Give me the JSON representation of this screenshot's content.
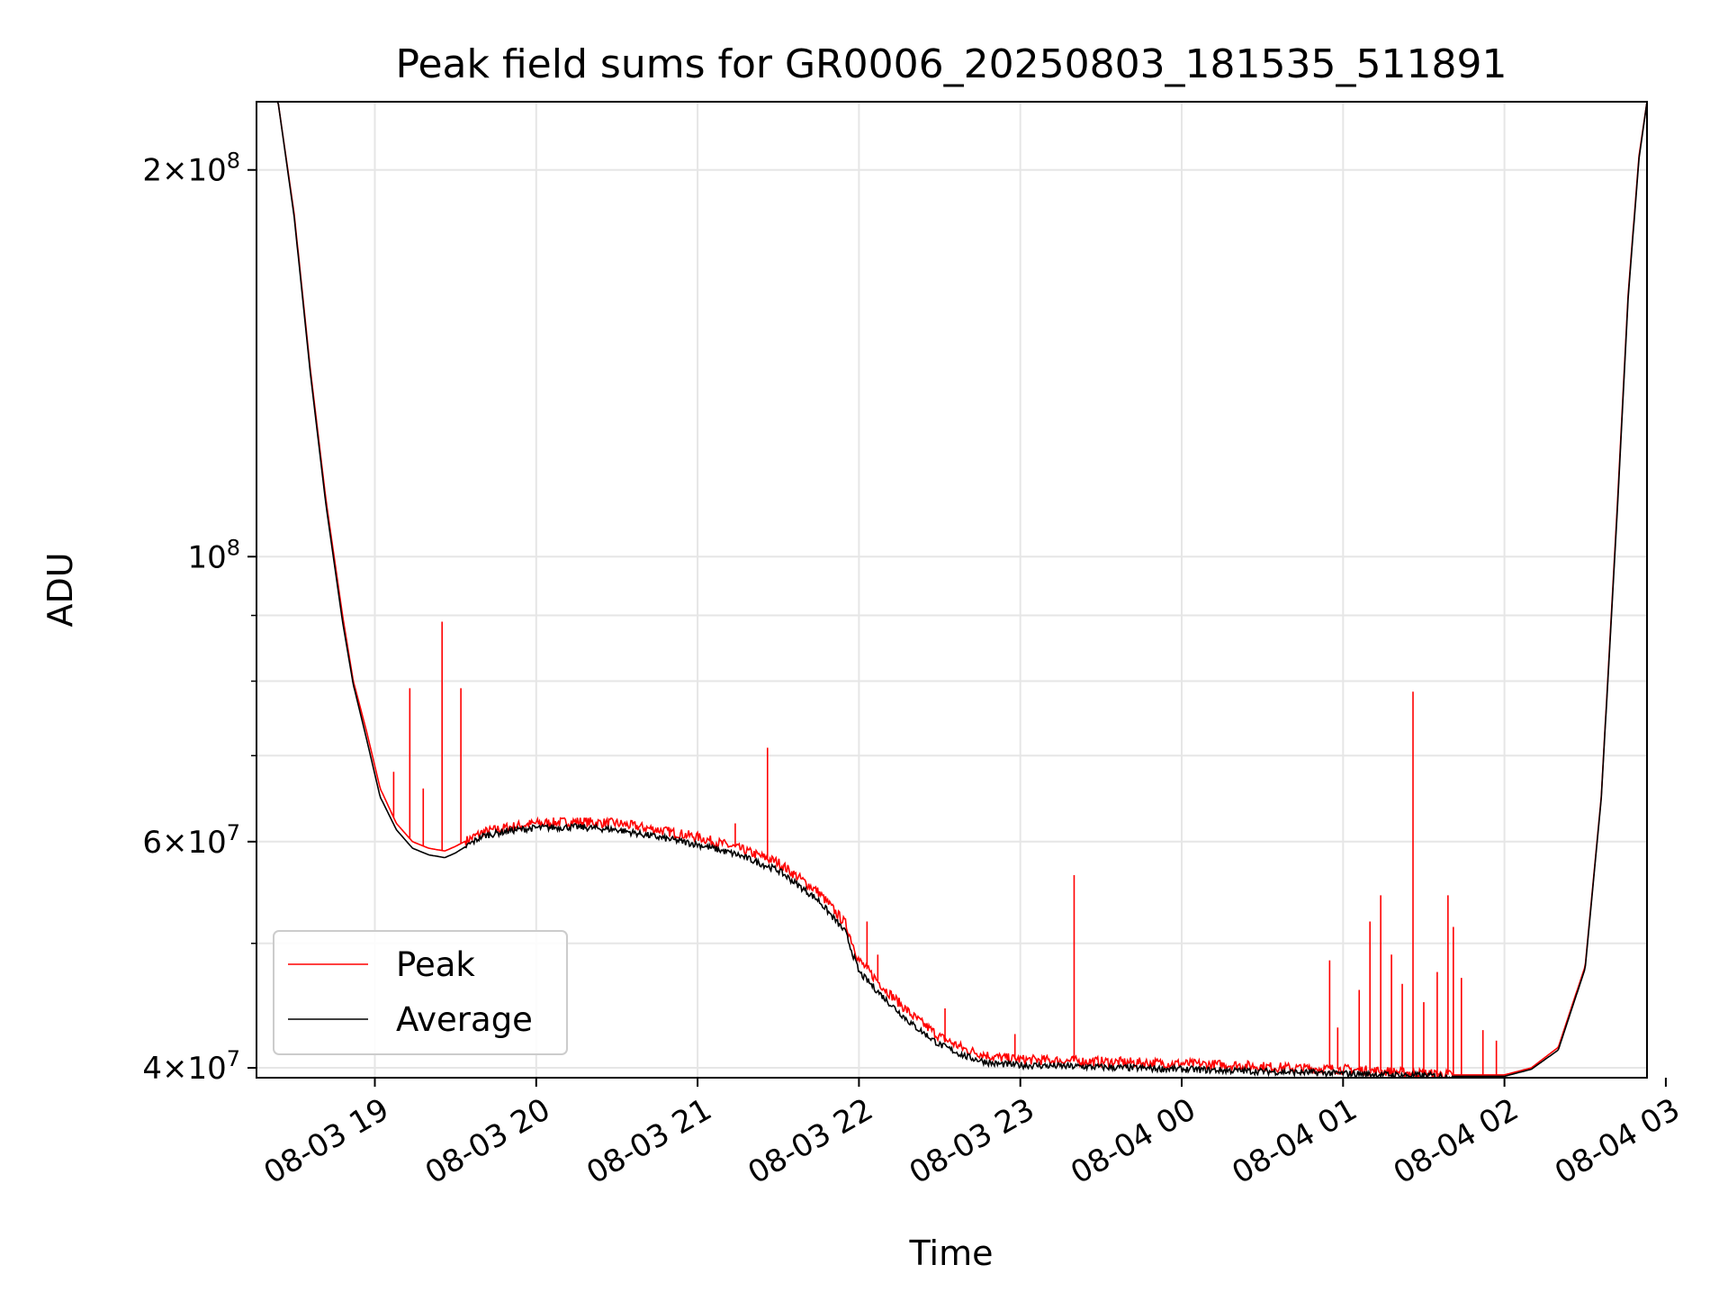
{
  "chart_data": {
    "type": "line",
    "title": "Peak field sums for GR0006_20250803_181535_511891",
    "xlabel": "Time",
    "ylabel": "ADU",
    "x_scale": "time",
    "y_scale": "log",
    "xlim": [
      "2025-08-03 18:16",
      "2025-08-04 02:53"
    ],
    "ylim": [
      39300000,
      226000000
    ],
    "grid": true,
    "legend_placement": "lower-left",
    "x_ticks": [
      "08-03 19",
      "08-03 20",
      "08-03 21",
      "08-03 22",
      "08-03 23",
      "08-04 00",
      "08-04 01",
      "08-04 02",
      "08-04 03"
    ],
    "x_tick_times": [
      "2025-08-03 19:00",
      "2025-08-03 20:00",
      "2025-08-03 21:00",
      "2025-08-03 22:00",
      "2025-08-03 23:00",
      "2025-08-04 00:00",
      "2025-08-04 01:00",
      "2025-08-04 02:00",
      "2025-08-04 03:00"
    ],
    "y_ticks": [
      {
        "value": 40000000,
        "base": "4",
        "exp": "7"
      },
      {
        "value": 60000000,
        "base": "6",
        "exp": "7"
      },
      {
        "value": 100000000,
        "base": "",
        "exp": "8"
      },
      {
        "value": 200000000,
        "base": "2",
        "exp": "8"
      }
    ],
    "y_minor_ticks": [
      50000000,
      70000000,
      80000000,
      90000000
    ],
    "series": [
      {
        "name": "Peak",
        "color": "#ff0000",
        "x": [
          "2025-08-03 18:16",
          "2025-08-03 18:24",
          "2025-08-03 18:30",
          "2025-08-03 18:36",
          "2025-08-03 18:42",
          "2025-08-03 18:48",
          "2025-08-03 18:52",
          "2025-08-03 18:57",
          "2025-08-03 19:02",
          "2025-08-03 19:08",
          "2025-08-03 19:14",
          "2025-08-03 19:20",
          "2025-08-03 19:26",
          "2025-08-03 19:30",
          "2025-08-03 19:40",
          "2025-08-03 19:50",
          "2025-08-03 20:00",
          "2025-08-03 20:15",
          "2025-08-03 20:30",
          "2025-08-03 20:45",
          "2025-08-03 21:00",
          "2025-08-03 21:15",
          "2025-08-03 21:30",
          "2025-08-03 21:45",
          "2025-08-03 21:55",
          "2025-08-03 22:00",
          "2025-08-03 22:10",
          "2025-08-03 22:20",
          "2025-08-03 22:30",
          "2025-08-03 22:40",
          "2025-08-03 22:50",
          "2025-08-03 23:00",
          "2025-08-03 23:20",
          "2025-08-03 23:40",
          "2025-08-04 00:00",
          "2025-08-04 00:20",
          "2025-08-04 00:40",
          "2025-08-04 01:00",
          "2025-08-04 01:20",
          "2025-08-04 01:40",
          "2025-08-04 02:00",
          "2025-08-04 02:10",
          "2025-08-04 02:20",
          "2025-08-04 02:30",
          "2025-08-04 02:36",
          "2025-08-04 02:42",
          "2025-08-04 02:46",
          "2025-08-04 02:50",
          "2025-08-04 02:53"
        ],
        "values": [
          226000000,
          226000000,
          185000000,
          140000000,
          110000000,
          90000000,
          80000000,
          73000000,
          66000000,
          62000000,
          60000000,
          59300000,
          59000000,
          59500000,
          61000000,
          61600000,
          62000000,
          62200000,
          62000000,
          61300000,
          60500000,
          59300000,
          57800000,
          54800000,
          51800000,
          48500000,
          46000000,
          43900000,
          42300000,
          41300000,
          40800000,
          40600000,
          40500000,
          40400000,
          40300000,
          40200000,
          40000000,
          39900000,
          39700000,
          39500000,
          39500000,
          40000000,
          41500000,
          48000000,
          65000000,
          110000000,
          160000000,
          205000000,
          226000000
        ],
        "spikes": [
          {
            "x": "2025-08-03 19:07",
            "value": 68000000
          },
          {
            "x": "2025-08-03 19:13",
            "value": 79000000
          },
          {
            "x": "2025-08-03 19:18",
            "value": 66000000
          },
          {
            "x": "2025-08-03 19:25",
            "value": 89000000
          },
          {
            "x": "2025-08-03 19:32",
            "value": 79000000
          },
          {
            "x": "2025-08-03 21:14",
            "value": 62000000
          },
          {
            "x": "2025-08-03 21:26",
            "value": 71000000
          },
          {
            "x": "2025-08-03 22:03",
            "value": 52000000
          },
          {
            "x": "2025-08-03 22:07",
            "value": 49000000
          },
          {
            "x": "2025-08-03 22:32",
            "value": 44500000
          },
          {
            "x": "2025-08-03 22:58",
            "value": 42500000
          },
          {
            "x": "2025-08-03 23:20",
            "value": 56500000
          },
          {
            "x": "2025-08-04 00:55",
            "value": 48500000
          },
          {
            "x": "2025-08-04 00:58",
            "value": 43000000
          },
          {
            "x": "2025-08-04 01:06",
            "value": 46000000
          },
          {
            "x": "2025-08-04 01:10",
            "value": 52000000
          },
          {
            "x": "2025-08-04 01:14",
            "value": 54500000
          },
          {
            "x": "2025-08-04 01:18",
            "value": 49000000
          },
          {
            "x": "2025-08-04 01:22",
            "value": 46500000
          },
          {
            "x": "2025-08-04 01:26",
            "value": 78500000
          },
          {
            "x": "2025-08-04 01:30",
            "value": 45000000
          },
          {
            "x": "2025-08-04 01:35",
            "value": 47500000
          },
          {
            "x": "2025-08-04 01:39",
            "value": 54500000
          },
          {
            "x": "2025-08-04 01:41",
            "value": 51500000
          },
          {
            "x": "2025-08-04 01:44",
            "value": 47000000
          },
          {
            "x": "2025-08-04 01:52",
            "value": 42800000
          },
          {
            "x": "2025-08-04 01:57",
            "value": 42000000
          }
        ]
      },
      {
        "name": "Average",
        "color": "#000000",
        "x": [
          "2025-08-03 18:16",
          "2025-08-03 18:24",
          "2025-08-03 18:30",
          "2025-08-03 18:36",
          "2025-08-03 18:42",
          "2025-08-03 18:48",
          "2025-08-03 18:52",
          "2025-08-03 18:57",
          "2025-08-03 19:02",
          "2025-08-03 19:08",
          "2025-08-03 19:14",
          "2025-08-03 19:20",
          "2025-08-03 19:26",
          "2025-08-03 19:30",
          "2025-08-03 19:40",
          "2025-08-03 19:50",
          "2025-08-03 20:00",
          "2025-08-03 20:15",
          "2025-08-03 20:30",
          "2025-08-03 20:45",
          "2025-08-03 21:00",
          "2025-08-03 21:15",
          "2025-08-03 21:30",
          "2025-08-03 21:45",
          "2025-08-03 21:55",
          "2025-08-03 22:00",
          "2025-08-03 22:10",
          "2025-08-03 22:20",
          "2025-08-03 22:30",
          "2025-08-03 22:40",
          "2025-08-03 22:50",
          "2025-08-03 23:00",
          "2025-08-03 23:20",
          "2025-08-03 23:40",
          "2025-08-04 00:00",
          "2025-08-04 00:20",
          "2025-08-04 00:40",
          "2025-08-04 01:00",
          "2025-08-04 01:20",
          "2025-08-04 01:40",
          "2025-08-04 02:00",
          "2025-08-04 02:10",
          "2025-08-04 02:20",
          "2025-08-04 02:30",
          "2025-08-04 02:36",
          "2025-08-04 02:42",
          "2025-08-04 02:46",
          "2025-08-04 02:50",
          "2025-08-04 02:53"
        ],
        "values": [
          226000000,
          226000000,
          184000000,
          139000000,
          109000000,
          89000000,
          79500000,
          72000000,
          65000000,
          61300000,
          59300000,
          58600000,
          58300000,
          58800000,
          60600000,
          61200000,
          61500000,
          61600000,
          61300000,
          60500000,
          59700000,
          58600000,
          57000000,
          54000000,
          51000000,
          47500000,
          45200000,
          43200000,
          41700000,
          40800000,
          40300000,
          40200000,
          40100000,
          40000000,
          39900000,
          39800000,
          39700000,
          39600000,
          39500000,
          39400000,
          39400000,
          39900000,
          41300000,
          47800000,
          64800000,
          109000000,
          159000000,
          204000000,
          226000000
        ]
      }
    ]
  }
}
